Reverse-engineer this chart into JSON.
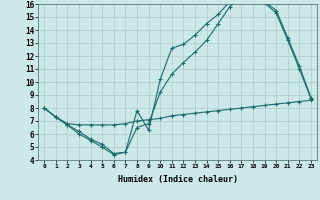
{
  "xlabel": "Humidex (Indice chaleur)",
  "bg_color": "#cce8e8",
  "line_color": "#1a6b6b",
  "grid_color": "#aacccc",
  "xlim": [
    -0.5,
    23.5
  ],
  "ylim": [
    4,
    16
  ],
  "xticks": [
    0,
    1,
    2,
    3,
    4,
    5,
    6,
    7,
    8,
    9,
    10,
    11,
    12,
    13,
    14,
    15,
    16,
    17,
    18,
    19,
    20,
    21,
    22,
    23
  ],
  "yticks": [
    4,
    5,
    6,
    7,
    8,
    9,
    10,
    11,
    12,
    13,
    14,
    15,
    16
  ],
  "curve1_x": [
    0,
    1,
    2,
    3,
    4,
    5,
    6,
    7,
    8,
    9,
    10,
    11,
    12,
    13,
    14,
    15,
    16,
    17,
    18,
    19,
    20,
    21,
    22,
    23
  ],
  "curve1_y": [
    8.0,
    7.3,
    6.7,
    6.0,
    5.5,
    5.0,
    4.4,
    4.6,
    7.8,
    6.3,
    10.2,
    12.6,
    12.9,
    13.6,
    14.5,
    15.2,
    16.2,
    16.5,
    16.3,
    16.1,
    15.3,
    13.2,
    11.0,
    8.7
  ],
  "curve2_x": [
    0,
    1,
    2,
    3,
    4,
    5,
    6,
    7,
    8,
    9,
    10,
    11,
    12,
    13,
    14,
    15,
    16,
    17,
    18,
    19,
    20,
    21,
    22,
    23
  ],
  "curve2_y": [
    8.0,
    7.3,
    6.7,
    6.2,
    5.6,
    5.2,
    4.5,
    4.6,
    6.5,
    6.8,
    9.2,
    10.6,
    11.5,
    12.3,
    13.2,
    14.5,
    15.8,
    16.6,
    16.4,
    16.2,
    15.5,
    13.4,
    11.2,
    8.8
  ],
  "curve3_x": [
    0,
    1,
    2,
    3,
    4,
    5,
    6,
    7,
    8,
    9,
    10,
    11,
    12,
    13,
    14,
    15,
    16,
    17,
    18,
    19,
    20,
    21,
    22,
    23
  ],
  "curve3_y": [
    8.0,
    7.3,
    6.8,
    6.7,
    6.7,
    6.7,
    6.7,
    6.8,
    7.0,
    7.1,
    7.2,
    7.4,
    7.5,
    7.6,
    7.7,
    7.8,
    7.9,
    8.0,
    8.1,
    8.2,
    8.3,
    8.4,
    8.5,
    8.6
  ]
}
